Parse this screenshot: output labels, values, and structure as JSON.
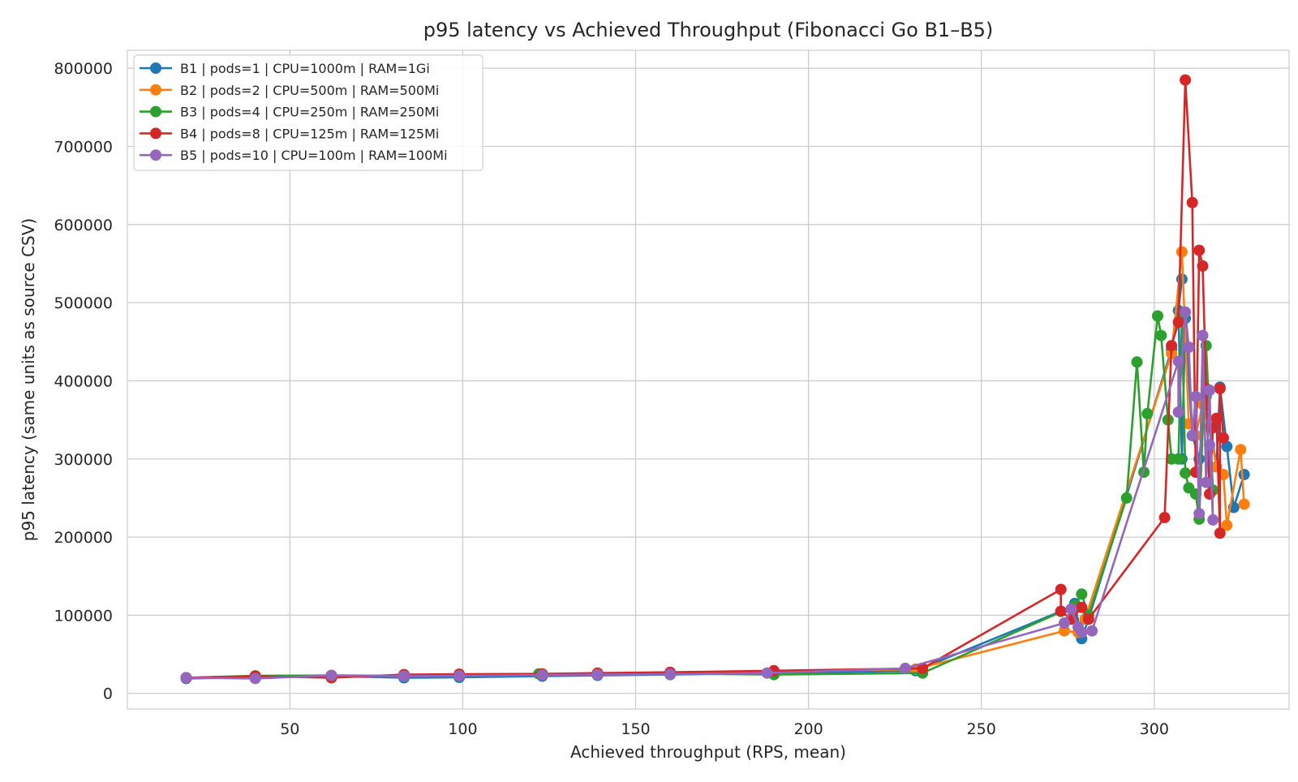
{
  "chart_data": {
    "type": "line",
    "title": "p95 latency vs Achieved Throughput (Fibonacci Go B1–B5)",
    "xlabel": "Achieved throughput (RPS, mean)",
    "ylabel": "p95 latency (same units as source CSV)",
    "xlim": [
      3,
      339
    ],
    "ylim": [
      -20000,
      823000
    ],
    "xticks": [
      50,
      100,
      150,
      200,
      250,
      300
    ],
    "yticks": [
      0,
      100000,
      200000,
      300000,
      400000,
      500000,
      600000,
      700000,
      800000
    ],
    "grid": true,
    "legend_position": "top-left",
    "series": [
      {
        "name": "B1 | pods=1 | CPU=1000m | RAM=1Gi",
        "color": "#1f77b4",
        "points": [
          [
            20,
            19000
          ],
          [
            40,
            20500
          ],
          [
            62,
            22000
          ],
          [
            83,
            20000
          ],
          [
            99,
            20500
          ],
          [
            123,
            22000
          ],
          [
            139,
            23000
          ],
          [
            160,
            24000
          ],
          [
            190,
            26000
          ],
          [
            231,
            29000
          ],
          [
            273,
            105000
          ],
          [
            277,
            115000
          ],
          [
            279,
            70000
          ],
          [
            281,
            95000
          ],
          [
            305,
            440000
          ],
          [
            308,
            530000
          ],
          [
            307,
            490000
          ],
          [
            308,
            300000
          ],
          [
            309,
            480000
          ],
          [
            311,
            330000
          ],
          [
            313,
            300000
          ],
          [
            315,
            380000
          ],
          [
            318,
            290000
          ],
          [
            319,
            392000
          ],
          [
            321,
            316000
          ],
          [
            323,
            238000
          ],
          [
            326,
            280000
          ]
        ]
      },
      {
        "name": "B2 | pods=2 | CPU=500m | RAM=500Mi",
        "color": "#ff7f0e",
        "points": [
          [
            20,
            20000
          ],
          [
            40,
            22000
          ],
          [
            62,
            23000
          ],
          [
            83,
            22000
          ],
          [
            99,
            23000
          ],
          [
            123,
            24000
          ],
          [
            139,
            25000
          ],
          [
            160,
            26000
          ],
          [
            190,
            28000
          ],
          [
            231,
            31000
          ],
          [
            274,
            80000
          ],
          [
            278,
            78000
          ],
          [
            280,
            95000
          ],
          [
            305,
            435000
          ],
          [
            308,
            565000
          ],
          [
            310,
            345000
          ],
          [
            312,
            330000
          ],
          [
            314,
            370000
          ],
          [
            316,
            340000
          ],
          [
            318,
            290000
          ],
          [
            320,
            280000
          ],
          [
            321,
            215000
          ],
          [
            325,
            312000
          ],
          [
            326,
            242000
          ]
        ]
      },
      {
        "name": "B3 | pods=4 | CPU=250m | RAM=250Mi",
        "color": "#2ca02c",
        "points": [
          [
            20,
            20000
          ],
          [
            40,
            22500
          ],
          [
            62,
            23000
          ],
          [
            83,
            22500
          ],
          [
            99,
            23000
          ],
          [
            122,
            25000
          ],
          [
            139,
            24500
          ],
          [
            160,
            25500
          ],
          [
            190,
            24000
          ],
          [
            233,
            26000
          ],
          [
            277,
            112000
          ],
          [
            279,
            127000
          ],
          [
            281,
            100000
          ],
          [
            292,
            250000
          ],
          [
            295,
            424000
          ],
          [
            297,
            283000
          ],
          [
            298,
            358000
          ],
          [
            301,
            483000
          ],
          [
            302,
            458000
          ],
          [
            304,
            350000
          ],
          [
            305,
            300000
          ],
          [
            307,
            300000
          ],
          [
            308,
            480000
          ],
          [
            309,
            282000
          ],
          [
            310,
            263000
          ],
          [
            312,
            255000
          ],
          [
            313,
            223000
          ],
          [
            315,
            445000
          ],
          [
            317,
            260000
          ]
        ]
      },
      {
        "name": "B4 | pods=8 | CPU=125m | RAM=125Mi",
        "color": "#d62728",
        "points": [
          [
            20,
            20000
          ],
          [
            40,
            22000
          ],
          [
            62,
            20000
          ],
          [
            83,
            24000
          ],
          [
            99,
            24500
          ],
          [
            123,
            25000
          ],
          [
            139,
            26000
          ],
          [
            160,
            27000
          ],
          [
            190,
            29000
          ],
          [
            233,
            32000
          ],
          [
            273,
            133000
          ],
          [
            273,
            105000
          ],
          [
            276,
            95000
          ],
          [
            279,
            110000
          ],
          [
            281,
            95000
          ],
          [
            303,
            225000
          ],
          [
            305,
            445000
          ],
          [
            307,
            475000
          ],
          [
            309,
            785000
          ],
          [
            311,
            628000
          ],
          [
            312,
            283000
          ],
          [
            313,
            567000
          ],
          [
            314,
            547000
          ],
          [
            315,
            390000
          ],
          [
            316,
            255000
          ],
          [
            317,
            340000
          ],
          [
            318,
            352000
          ],
          [
            319,
            205000
          ],
          [
            319,
            390000
          ],
          [
            320,
            327000
          ]
        ]
      },
      {
        "name": "B5 | pods=10 | CPU=100m | RAM=100Mi",
        "color": "#9467bd",
        "points": [
          [
            20,
            20000
          ],
          [
            40,
            19000
          ],
          [
            62,
            23000
          ],
          [
            83,
            22000
          ],
          [
            99,
            22500
          ],
          [
            123,
            23500
          ],
          [
            139,
            24000
          ],
          [
            160,
            24500
          ],
          [
            188,
            26000
          ],
          [
            228,
            32000
          ],
          [
            274,
            90000
          ],
          [
            276,
            108000
          ],
          [
            278,
            85000
          ],
          [
            279,
            78000
          ],
          [
            282,
            80000
          ],
          [
            307,
            425000
          ],
          [
            307,
            360000
          ],
          [
            309,
            488000
          ],
          [
            310,
            443000
          ],
          [
            311,
            330000
          ],
          [
            312,
            380000
          ],
          [
            313,
            230000
          ],
          [
            314,
            458000
          ],
          [
            315,
            270000
          ],
          [
            316,
            388000
          ],
          [
            317,
            222000
          ],
          [
            316,
            318000
          ]
        ]
      }
    ]
  }
}
